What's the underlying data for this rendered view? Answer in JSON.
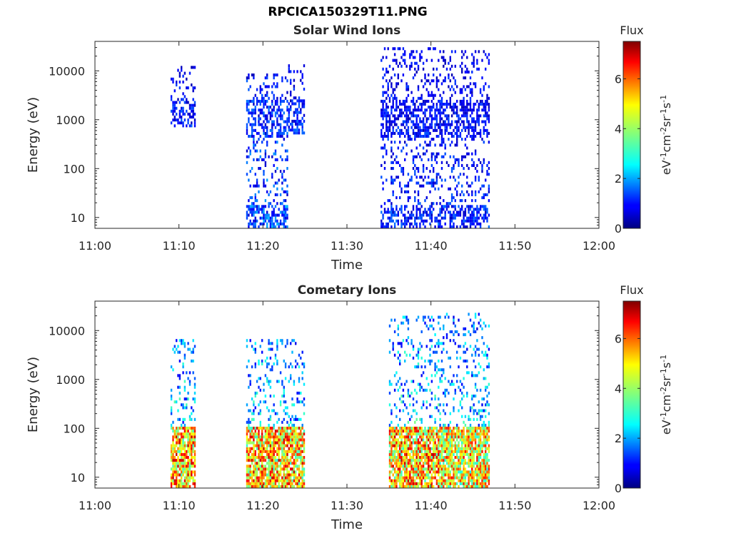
{
  "figure_title": "RPCICA150329T11.PNG",
  "colorbar": {
    "label": "Flux",
    "units_parts": [
      "eV",
      "-1",
      "cm",
      "-2",
      "sr",
      "-1",
      "s",
      "-1"
    ],
    "ticks": [
      0,
      2,
      4,
      6
    ],
    "range": [
      0,
      7.5
    ],
    "colormap": "jet"
  },
  "chart_data": [
    {
      "type": "heatmap",
      "title": "Solar Wind Ions",
      "xlabel": "Time",
      "ylabel": "Energy (eV)",
      "x_ticks": [
        "11:00",
        "11:10",
        "11:20",
        "11:30",
        "11:40",
        "11:50",
        "12:00"
      ],
      "xlim": [
        "11:00",
        "12:00"
      ],
      "y_ticks": [
        "10",
        "100",
        "1000",
        "10000"
      ],
      "ylim": [
        6,
        40000
      ],
      "yscale": "log",
      "colorbar_label": "Flux",
      "regions": [
        {
          "t_start": "11:09",
          "t_end": "11:12",
          "e_low": 700,
          "e_high": 12000,
          "flux_max": 3.0
        },
        {
          "t_start": "11:18",
          "t_end": "11:23",
          "e_low": 6,
          "e_high": 8000,
          "flux_max": 4.0
        },
        {
          "t_start": "11:23",
          "t_end": "11:25",
          "e_low": 500,
          "e_high": 12000,
          "flux_max": 3.0
        },
        {
          "t_start": "11:34",
          "t_end": "11:41",
          "e_low": 6,
          "e_high": 30000,
          "flux_max": 3.0
        },
        {
          "t_start": "11:41",
          "t_end": "11:47",
          "e_low": 6,
          "e_high": 25000,
          "flux_max": 3.0
        }
      ]
    },
    {
      "type": "heatmap",
      "title": "Cometary Ions",
      "xlabel": "Time",
      "ylabel": "Energy (eV)",
      "x_ticks": [
        "11:00",
        "11:10",
        "11:20",
        "11:30",
        "11:40",
        "11:50",
        "12:00"
      ],
      "xlim": [
        "11:00",
        "12:00"
      ],
      "y_ticks": [
        "10",
        "100",
        "1000",
        "10000"
      ],
      "ylim": [
        6,
        40000
      ],
      "yscale": "log",
      "colorbar_label": "Flux",
      "regions": [
        {
          "t_start": "11:09",
          "t_end": "11:12",
          "e_low": 6,
          "e_high": 6000,
          "flux_max": 7.0
        },
        {
          "t_start": "11:18",
          "t_end": "11:25",
          "e_low": 6,
          "e_high": 6000,
          "flux_max": 7.0
        },
        {
          "t_start": "11:35",
          "t_end": "11:41",
          "e_low": 6,
          "e_high": 18000,
          "flux_max": 7.0
        },
        {
          "t_start": "11:41",
          "t_end": "11:47",
          "e_low": 6,
          "e_high": 22000,
          "flux_max": 6.5
        }
      ]
    }
  ]
}
